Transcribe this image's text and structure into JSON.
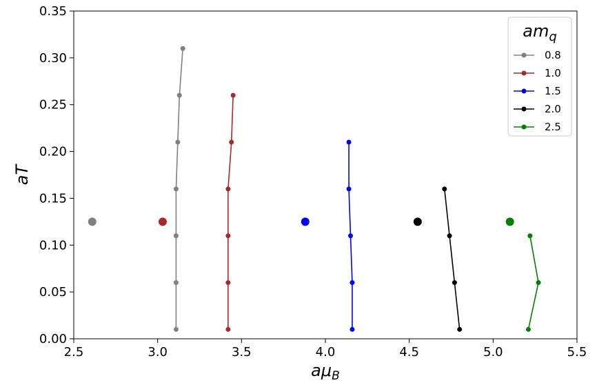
{
  "chart_data": {
    "type": "line",
    "xlabel_main": "aμ",
    "xlabel_sub": "B",
    "ylabel": "aT",
    "xlim": [
      2.5,
      5.5
    ],
    "ylim": [
      0.0,
      0.35
    ],
    "xticks": [
      2.5,
      3.0,
      3.5,
      4.0,
      4.5,
      5.0,
      5.5
    ],
    "yticks": [
      0.0,
      0.05,
      0.1,
      0.15,
      0.2,
      0.25,
      0.3,
      0.35
    ],
    "xtick_labels": [
      "2.5",
      "3.0",
      "3.5",
      "4.0",
      "4.5",
      "5.0",
      "5.5"
    ],
    "ytick_labels": [
      "0.00",
      "0.05",
      "0.10",
      "0.15",
      "0.20",
      "0.25",
      "0.30",
      "0.35"
    ],
    "grid": false,
    "legend_placement": "top-right",
    "legend_title_main": "am",
    "legend_title_sub": "q",
    "series": [
      {
        "name": "0.8",
        "color": "#808080",
        "x": [
          3.11,
          3.11,
          3.11,
          3.11,
          3.12,
          3.13,
          3.15
        ],
        "y": [
          0.01,
          0.06,
          0.11,
          0.16,
          0.21,
          0.26,
          0.31
        ],
        "marker": {
          "x": 2.61,
          "y": 0.125
        }
      },
      {
        "name": "1.0",
        "color": "#a52a2a",
        "x": [
          3.42,
          3.42,
          3.42,
          3.42,
          3.44,
          3.45
        ],
        "y": [
          0.01,
          0.06,
          0.11,
          0.16,
          0.21,
          0.26
        ],
        "marker": {
          "x": 3.03,
          "y": 0.125
        }
      },
      {
        "name": "1.5",
        "color": "#0000ff",
        "x": [
          4.16,
          4.16,
          4.15,
          4.14,
          4.14
        ],
        "y": [
          0.01,
          0.06,
          0.11,
          0.16,
          0.21
        ],
        "marker": {
          "x": 3.88,
          "y": 0.125
        }
      },
      {
        "name": "2.0",
        "color": "#000000",
        "x": [
          4.8,
          4.77,
          4.74,
          4.71
        ],
        "y": [
          0.01,
          0.06,
          0.11,
          0.16
        ],
        "marker": {
          "x": 4.55,
          "y": 0.125
        }
      },
      {
        "name": "2.5",
        "color": "#008000",
        "x": [
          5.21,
          5.27,
          5.22
        ],
        "y": [
          0.01,
          0.06,
          0.11
        ],
        "marker": {
          "x": 5.1,
          "y": 0.125
        }
      }
    ]
  }
}
